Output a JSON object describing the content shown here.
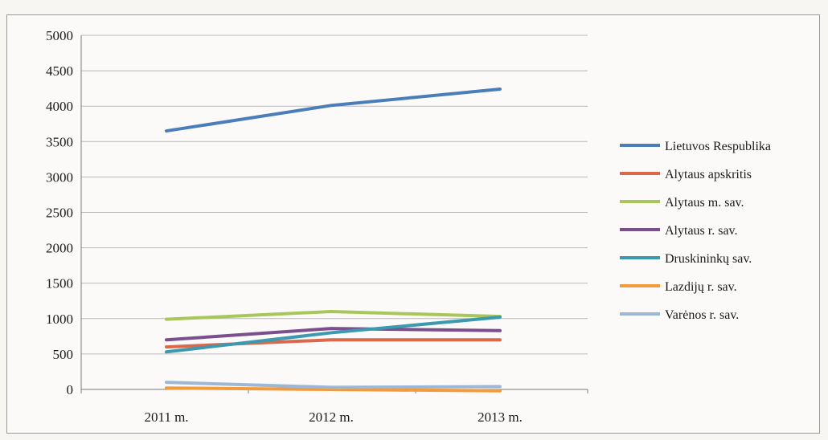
{
  "chart_data": {
    "type": "line",
    "title": "",
    "xlabel": "",
    "ylabel": "",
    "categories": [
      "2011 m.",
      "2012 m.",
      "2013 m."
    ],
    "ylim": [
      0,
      5000
    ],
    "yticks": [
      0,
      500,
      1000,
      1500,
      2000,
      2500,
      3000,
      3500,
      4000,
      4500,
      5000
    ],
    "grid": "horizontal",
    "legend_position": "right",
    "series": [
      {
        "name": "Lietuvos Respublika",
        "color": "#4a7ebb",
        "values": [
          3650,
          4010,
          4240
        ]
      },
      {
        "name": "Alytaus apskritis",
        "color": "#d9694a",
        "values": [
          600,
          700,
          700
        ]
      },
      {
        "name": "Alytaus m. sav.",
        "color": "#a8c65a",
        "values": [
          990,
          1100,
          1030
        ]
      },
      {
        "name": "Alytaus r. sav.",
        "color": "#7b4f8e",
        "values": [
          700,
          860,
          830
        ]
      },
      {
        "name": "Druskininkų sav.",
        "color": "#3b9ab0",
        "values": [
          530,
          800,
          1020
        ]
      },
      {
        "name": "Lazdijų r. sav.",
        "color": "#f39a3a",
        "values": [
          20,
          0,
          -20
        ]
      },
      {
        "name": "Varėnos r. sav.",
        "color": "#9db8d6",
        "values": [
          100,
          30,
          40
        ]
      }
    ]
  }
}
